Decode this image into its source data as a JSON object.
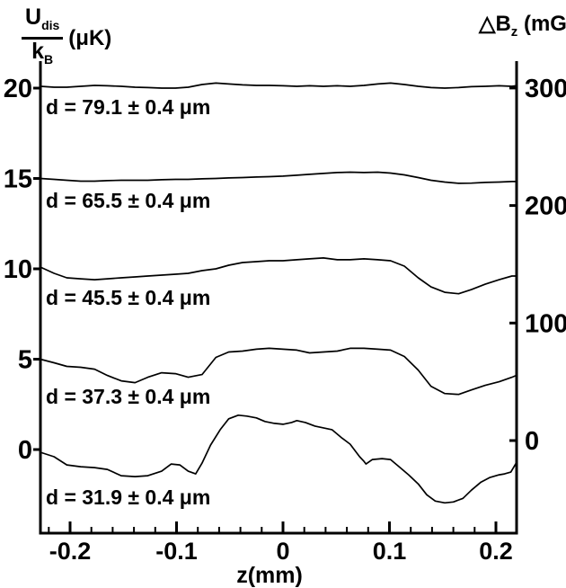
{
  "colors": {
    "background": "#ffffff",
    "line": "#000000",
    "text": "#000000"
  },
  "title_left": {
    "num": "U",
    "num_sub": "dis",
    "den": "k",
    "den_sub": "B",
    "units": "(μK)"
  },
  "title_right": {
    "sym": "△B",
    "sub": "z",
    "units": "(mG)"
  },
  "chart_data": {
    "type": "line",
    "title": "",
    "xlabel": "z(mm)",
    "xlim": [
      -0.228,
      0.22
    ],
    "x_ticks": [
      -0.2,
      -0.1,
      0,
      0.1,
      0.2
    ],
    "x_tick_labels": [
      "-0.2",
      "-0.1",
      "0",
      "0.1",
      "0.2"
    ],
    "x_minor_step": 0.02,
    "grid": false,
    "legend_position": "none",
    "left_axis": {
      "label": "U_dis/k_B (μK)",
      "ticks": [
        20,
        15,
        10,
        5,
        0
      ],
      "tick_labels": [
        "20",
        "15",
        "10",
        "5",
        "0"
      ],
      "ylim": [
        -4.6,
        21.3
      ]
    },
    "right_axis": {
      "label": "ΔB_z (mG)",
      "ticks": [
        300,
        200,
        100,
        0
      ],
      "tick_labels": [
        "300",
        "200",
        "100",
        "0"
      ]
    },
    "series": [
      {
        "name": "d = 79.1 ± 0.4 μm",
        "offset_uK": 20,
        "points": [
          [
            -0.228,
            20.1
          ],
          [
            -0.215,
            20.05
          ],
          [
            -0.203,
            20.05
          ],
          [
            -0.19,
            20.1
          ],
          [
            -0.177,
            20.15
          ],
          [
            -0.165,
            20.13
          ],
          [
            -0.152,
            20.1
          ],
          [
            -0.139,
            20.05
          ],
          [
            -0.127,
            20.03
          ],
          [
            -0.114,
            20.0
          ],
          [
            -0.101,
            20.0
          ],
          [
            -0.089,
            20.05
          ],
          [
            -0.076,
            20.2
          ],
          [
            -0.063,
            20.28
          ],
          [
            -0.051,
            20.23
          ],
          [
            -0.038,
            20.18
          ],
          [
            -0.025,
            20.15
          ],
          [
            -0.013,
            20.15
          ],
          [
            0,
            20.13
          ],
          [
            0.013,
            20.1
          ],
          [
            0.025,
            20.13
          ],
          [
            0.038,
            20.1
          ],
          [
            0.051,
            20.13
          ],
          [
            0.063,
            20.1
          ],
          [
            0.076,
            20.15
          ],
          [
            0.089,
            20.23
          ],
          [
            0.101,
            20.28
          ],
          [
            0.114,
            20.2
          ],
          [
            0.127,
            20.1
          ],
          [
            0.139,
            20.03
          ],
          [
            0.152,
            20.0
          ],
          [
            0.165,
            20.03
          ],
          [
            0.177,
            20.08
          ],
          [
            0.19,
            20.1
          ],
          [
            0.203,
            20.13
          ],
          [
            0.215,
            20.1
          ],
          [
            0.219,
            20.13
          ]
        ]
      },
      {
        "name": "d = 65.5 ± 0.4 μm",
        "offset_uK": 15,
        "points": [
          [
            -0.228,
            15.0
          ],
          [
            -0.215,
            14.95
          ],
          [
            -0.203,
            14.9
          ],
          [
            -0.19,
            14.85
          ],
          [
            -0.177,
            14.85
          ],
          [
            -0.165,
            14.88
          ],
          [
            -0.152,
            14.9
          ],
          [
            -0.139,
            14.9
          ],
          [
            -0.127,
            14.9
          ],
          [
            -0.114,
            14.93
          ],
          [
            -0.101,
            14.95
          ],
          [
            -0.089,
            14.95
          ],
          [
            -0.076,
            14.98
          ],
          [
            -0.063,
            15.0
          ],
          [
            -0.051,
            15.03
          ],
          [
            -0.038,
            15.05
          ],
          [
            -0.025,
            15.08
          ],
          [
            -0.013,
            15.1
          ],
          [
            0,
            15.13
          ],
          [
            0.013,
            15.18
          ],
          [
            0.025,
            15.23
          ],
          [
            0.038,
            15.28
          ],
          [
            0.051,
            15.33
          ],
          [
            0.063,
            15.35
          ],
          [
            0.076,
            15.33
          ],
          [
            0.089,
            15.35
          ],
          [
            0.101,
            15.3
          ],
          [
            0.114,
            15.2
          ],
          [
            0.127,
            15.05
          ],
          [
            0.139,
            14.9
          ],
          [
            0.152,
            14.8
          ],
          [
            0.165,
            14.73
          ],
          [
            0.177,
            14.74
          ],
          [
            0.19,
            14.78
          ],
          [
            0.203,
            14.8
          ],
          [
            0.215,
            14.83
          ],
          [
            0.219,
            14.83
          ]
        ]
      },
      {
        "name": "d = 45.5 ± 0.4 μm",
        "offset_uK": 10,
        "points": [
          [
            -0.228,
            10.1
          ],
          [
            -0.215,
            9.75
          ],
          [
            -0.203,
            9.5
          ],
          [
            -0.19,
            9.45
          ],
          [
            -0.177,
            9.4
          ],
          [
            -0.165,
            9.45
          ],
          [
            -0.152,
            9.5
          ],
          [
            -0.139,
            9.55
          ],
          [
            -0.127,
            9.6
          ],
          [
            -0.114,
            9.65
          ],
          [
            -0.101,
            9.7
          ],
          [
            -0.089,
            9.75
          ],
          [
            -0.076,
            9.9
          ],
          [
            -0.063,
            10.0
          ],
          [
            -0.051,
            10.2
          ],
          [
            -0.038,
            10.35
          ],
          [
            -0.025,
            10.4
          ],
          [
            -0.013,
            10.45
          ],
          [
            0,
            10.45
          ],
          [
            0.013,
            10.5
          ],
          [
            0.025,
            10.55
          ],
          [
            0.038,
            10.6
          ],
          [
            0.051,
            10.5
          ],
          [
            0.063,
            10.5
          ],
          [
            0.076,
            10.55
          ],
          [
            0.089,
            10.5
          ],
          [
            0.101,
            10.45
          ],
          [
            0.114,
            10.15
          ],
          [
            0.127,
            9.5
          ],
          [
            0.139,
            9.0
          ],
          [
            0.152,
            8.7
          ],
          [
            0.165,
            8.62
          ],
          [
            0.177,
            8.85
          ],
          [
            0.19,
            9.15
          ],
          [
            0.203,
            9.4
          ],
          [
            0.215,
            9.6
          ],
          [
            0.219,
            9.6
          ]
        ]
      },
      {
        "name": "d = 37.3 ± 0.4 μm",
        "offset_uK": 5,
        "points": [
          [
            -0.228,
            5.0
          ],
          [
            -0.215,
            4.8
          ],
          [
            -0.203,
            4.6
          ],
          [
            -0.19,
            4.55
          ],
          [
            -0.177,
            4.45
          ],
          [
            -0.165,
            4.1
          ],
          [
            -0.152,
            3.8
          ],
          [
            -0.139,
            3.7
          ],
          [
            -0.127,
            4.0
          ],
          [
            -0.114,
            4.25
          ],
          [
            -0.101,
            4.2
          ],
          [
            -0.089,
            4.0
          ],
          [
            -0.076,
            4.15
          ],
          [
            -0.063,
            5.1
          ],
          [
            -0.051,
            5.4
          ],
          [
            -0.038,
            5.45
          ],
          [
            -0.025,
            5.55
          ],
          [
            -0.013,
            5.6
          ],
          [
            0,
            5.55
          ],
          [
            0.013,
            5.5
          ],
          [
            0.025,
            5.35
          ],
          [
            0.038,
            5.4
          ],
          [
            0.051,
            5.45
          ],
          [
            0.063,
            5.6
          ],
          [
            0.076,
            5.6
          ],
          [
            0.089,
            5.55
          ],
          [
            0.101,
            5.5
          ],
          [
            0.114,
            5.15
          ],
          [
            0.127,
            4.4
          ],
          [
            0.139,
            3.5
          ],
          [
            0.152,
            3.1
          ],
          [
            0.165,
            3.05
          ],
          [
            0.177,
            3.3
          ],
          [
            0.19,
            3.55
          ],
          [
            0.203,
            3.75
          ],
          [
            0.215,
            4.0
          ],
          [
            0.219,
            4.1
          ]
        ]
      },
      {
        "name": "d = 31.9 ± 0.4 μm",
        "offset_uK": 0,
        "points": [
          [
            -0.228,
            -0.15
          ],
          [
            -0.215,
            -0.4
          ],
          [
            -0.203,
            -0.85
          ],
          [
            -0.19,
            -0.95
          ],
          [
            -0.177,
            -1.0
          ],
          [
            -0.165,
            -1.1
          ],
          [
            -0.152,
            -1.45
          ],
          [
            -0.139,
            -1.5
          ],
          [
            -0.127,
            -1.45
          ],
          [
            -0.114,
            -1.2
          ],
          [
            -0.105,
            -0.8
          ],
          [
            -0.097,
            -0.85
          ],
          [
            -0.089,
            -1.2
          ],
          [
            -0.082,
            -1.35
          ],
          [
            -0.076,
            -0.75
          ],
          [
            -0.068,
            0.25
          ],
          [
            -0.059,
            1.1
          ],
          [
            -0.051,
            1.7
          ],
          [
            -0.042,
            1.9
          ],
          [
            -0.034,
            1.85
          ],
          [
            -0.025,
            1.75
          ],
          [
            -0.017,
            1.55
          ],
          [
            -0.008,
            1.45
          ],
          [
            0,
            1.4
          ],
          [
            0.008,
            1.5
          ],
          [
            0.013,
            1.6
          ],
          [
            0.021,
            1.5
          ],
          [
            0.03,
            1.3
          ],
          [
            0.046,
            1.1
          ],
          [
            0.055,
            0.65
          ],
          [
            0.063,
            0.3
          ],
          [
            0.072,
            -0.4
          ],
          [
            0.076,
            -0.65
          ],
          [
            0.078,
            -0.8
          ],
          [
            0.084,
            -0.55
          ],
          [
            0.093,
            -0.5
          ],
          [
            0.101,
            -0.55
          ],
          [
            0.11,
            -1.0
          ],
          [
            0.118,
            -1.4
          ],
          [
            0.127,
            -1.9
          ],
          [
            0.135,
            -2.5
          ],
          [
            0.143,
            -2.85
          ],
          [
            0.152,
            -2.95
          ],
          [
            0.16,
            -2.9
          ],
          [
            0.169,
            -2.7
          ],
          [
            0.177,
            -2.25
          ],
          [
            0.186,
            -1.8
          ],
          [
            0.194,
            -1.55
          ],
          [
            0.203,
            -1.4
          ],
          [
            0.208,
            -1.35
          ],
          [
            0.214,
            -1.25
          ],
          [
            0.219,
            -0.75
          ]
        ]
      }
    ]
  }
}
